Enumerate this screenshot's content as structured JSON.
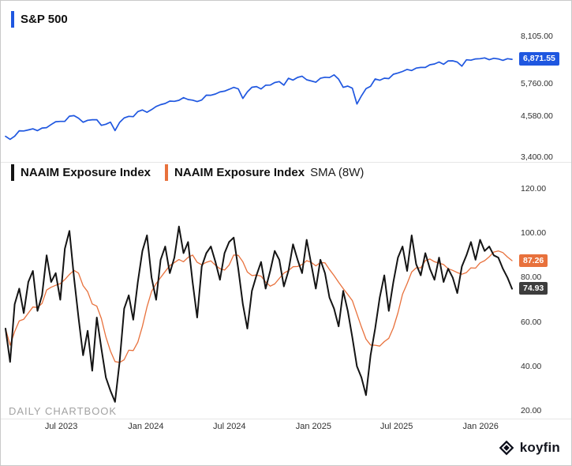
{
  "panels": {
    "top": {
      "legend": "S&P 500"
    },
    "bottom": {
      "legend1": "NAAIM Exposure Index",
      "legend2_name": "NAAIM Exposure Index",
      "legend2_suffix": "SMA (8W)"
    }
  },
  "watermark": "DAILY CHARTBOOK",
  "brand": "koyfin",
  "colors": {
    "sp500": "#1f57e0",
    "naaim": "#141414",
    "sma": "#e8713c",
    "badge_dark": "#3d3d3d",
    "axis_text": "#303030"
  },
  "x_axis": {
    "ticks": [
      {
        "label": "Jul 2023",
        "pos": 0.11
      },
      {
        "label": "Jan 2024",
        "pos": 0.277
      },
      {
        "label": "Jul 2024",
        "pos": 0.442
      },
      {
        "label": "Jan 2025",
        "pos": 0.608
      },
      {
        "label": "Jul 2025",
        "pos": 0.772
      },
      {
        "label": "Jan 2026",
        "pos": 0.938
      }
    ]
  },
  "chart_data": [
    {
      "type": "line",
      "title": "S&P 500",
      "yscale": "log",
      "grid": false,
      "legend_position": "top-left",
      "y_ticks": [
        {
          "label": "8,105.00",
          "value": 8105
        },
        {
          "label": "5,760.00",
          "value": 5760
        },
        {
          "label": "4,580.00",
          "value": 4580
        },
        {
          "label": "3,400.00",
          "value": 3400
        }
      ],
      "last_label": "6,871.55",
      "last_value": 6871.55,
      "x_range": [
        "Mar 2023",
        "Mar 2026"
      ],
      "series": [
        {
          "name": "S&P 500",
          "color": "#1f57e0",
          "values": [
            3950,
            3865,
            3955,
            4109,
            4105,
            4135,
            4169,
            4115,
            4192,
            4205,
            4298,
            4388,
            4396,
            4399,
            4565,
            4582,
            4500,
            4370,
            4433,
            4451,
            4450,
            4275,
            4308,
            4374,
            4117,
            4365,
            4508,
            4559,
            4550,
            4719,
            4774,
            4697,
            4784,
            4894,
            4959,
            5001,
            5089,
            5078,
            5117,
            5218,
            5147,
            5123,
            5071,
            5128,
            5308,
            5305,
            5354,
            5434,
            5465,
            5537,
            5615,
            5555,
            5186,
            5434,
            5620,
            5648,
            5554,
            5703,
            5709,
            5815,
            5854,
            5705,
            5996,
            5917,
            6032,
            6084,
            5931,
            5882,
            5827,
            5996,
            6040,
            6026,
            6144,
            5955,
            5615,
            5668,
            5581,
            4983,
            5283,
            5561,
            5660,
            5963,
            5912,
            6000,
            5981,
            6173,
            6226,
            6297,
            6390,
            6340,
            6450,
            6481,
            6481,
            6607,
            6644,
            6740,
            6629,
            6792,
            6796,
            6734,
            6538,
            6849,
            6828,
            6890,
            6902,
            6940,
            6850,
            6920,
            6890,
            6820,
            6900,
            6871.55
          ]
        }
      ]
    },
    {
      "type": "line",
      "title": "NAAIM Exposure Index",
      "yscale": "linear",
      "ylim": [
        20,
        120
      ],
      "grid": false,
      "legend_position": "top-left",
      "y_ticks": [
        {
          "label": "120.00",
          "value": 120
        },
        {
          "label": "100.00",
          "value": 100
        },
        {
          "label": "80.00",
          "value": 80
        },
        {
          "label": "60.00",
          "value": 60
        },
        {
          "label": "40.00",
          "value": 40
        },
        {
          "label": "20.00",
          "value": 20
        }
      ],
      "x_range": [
        "Mar 2023",
        "Mar 2026"
      ],
      "series": [
        {
          "name": "NAAIM Exposure Index",
          "color": "#141414",
          "values": [
            57,
            42,
            68,
            75,
            64,
            78,
            83,
            65,
            72,
            90,
            78,
            82,
            70,
            93,
            101,
            80,
            62,
            45,
            56,
            38,
            62,
            48,
            35,
            29,
            24,
            42,
            66,
            72,
            61,
            78,
            92,
            99,
            80,
            70,
            88,
            94,
            82,
            89,
            103,
            91,
            96,
            78,
            62,
            85,
            91,
            94,
            87,
            79,
            91,
            96,
            98,
            84,
            68,
            57,
            74,
            81,
            87,
            75,
            83,
            92,
            88,
            76,
            83,
            95,
            88,
            82,
            97,
            86,
            75,
            88,
            82,
            71,
            66,
            58,
            74,
            65,
            53,
            40,
            35,
            27,
            45,
            57,
            71,
            81,
            65,
            78,
            89,
            94,
            83,
            99,
            86,
            81,
            91,
            84,
            79,
            89,
            78,
            84,
            80,
            73,
            85,
            90,
            96,
            88,
            97,
            92,
            94,
            90,
            89,
            84,
            80,
            74.93
          ]
        },
        {
          "name": "NAAIM Exposure Index SMA (8W)",
          "color": "#e8713c",
          "derived": "8-period moving average of NAAIM Exposure Index values",
          "window": 8,
          "last_value": 87.26
        }
      ],
      "badges": [
        {
          "label": "87.26",
          "value": 87.26,
          "series": "NAAIM Exposure Index SMA (8W)"
        },
        {
          "label": "74.93",
          "value": 74.93,
          "series": "NAAIM Exposure Index"
        }
      ]
    }
  ]
}
